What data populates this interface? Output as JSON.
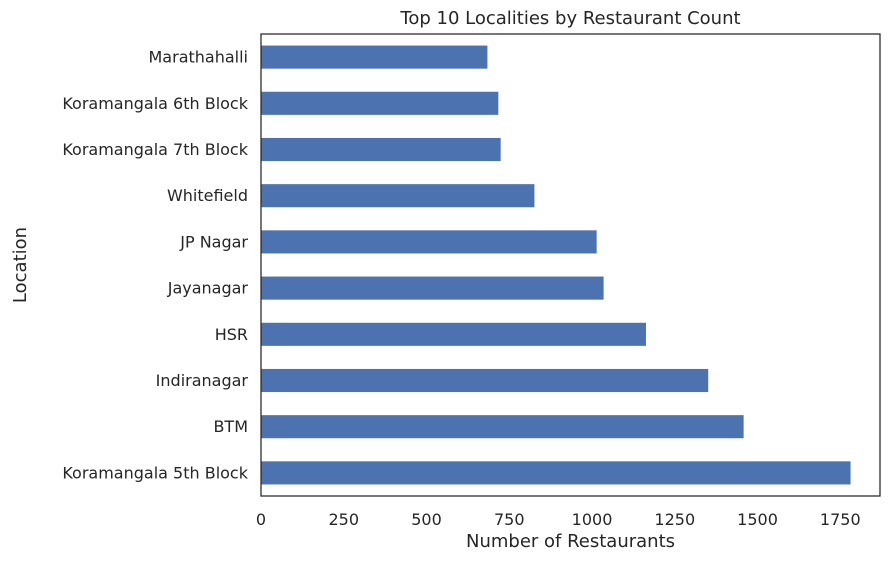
{
  "chart_data": {
    "type": "bar",
    "orientation": "horizontal",
    "title": "Top 10 Localities by Restaurant Count",
    "xlabel": "Number of Restaurants",
    "ylabel": "Location",
    "categories": [
      "Koramangala 5th Block",
      "BTM",
      "Indiranagar",
      "HSR",
      "Jayanagar",
      "JP Nagar",
      "Whitefield",
      "Koramangala 7th Block",
      "Koramangala 6th Block",
      "Marathahalli"
    ],
    "values": [
      1781,
      1458,
      1351,
      1163,
      1035,
      1014,
      826,
      724,
      717,
      684
    ],
    "xlim": [
      0,
      1870
    ],
    "xticks": [
      0,
      250,
      500,
      750,
      1000,
      1250,
      1500,
      1750
    ],
    "grid": false,
    "bar_color": "#4c72b0"
  }
}
